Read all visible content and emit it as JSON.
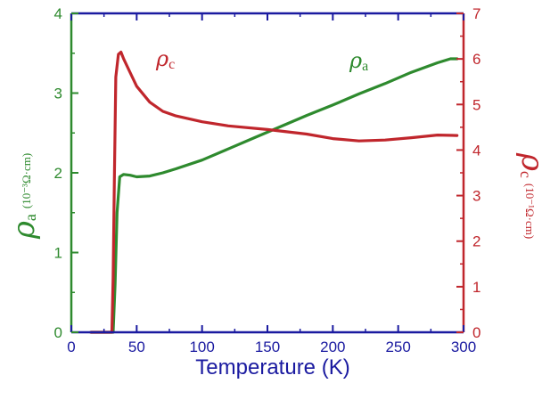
{
  "chart_data": {
    "type": "line",
    "xlabel": "Temperature (K)",
    "x_ticks": [
      "0",
      "50",
      "100",
      "150",
      "200",
      "250",
      "300"
    ],
    "xlim": [
      0,
      300
    ],
    "y_left": {
      "label_symbol": "ρ",
      "label_sub": "a",
      "label_unit": "(10⁻³Ω·cm)",
      "ticks": [
        "0",
        "1",
        "2",
        "3",
        "4"
      ],
      "ylim": [
        0,
        4
      ]
    },
    "y_right": {
      "label_symbol": "ρ",
      "label_sub": "c",
      "label_unit": "(10⁻¹Ω·cm)",
      "ticks": [
        "0",
        "1",
        "2",
        "3",
        "4",
        "5",
        "6",
        "7"
      ],
      "ylim": [
        0,
        7
      ]
    },
    "series": [
      {
        "name": "ρa",
        "axis": "left",
        "color": "#2e8a2e",
        "x": [
          15,
          32,
          33.5,
          35,
          37,
          40,
          45,
          50,
          60,
          70,
          80,
          100,
          120,
          140,
          160,
          180,
          200,
          220,
          240,
          260,
          280,
          290,
          295
        ],
        "y": [
          0,
          0,
          0.6,
          1.5,
          1.95,
          1.98,
          1.97,
          1.95,
          1.96,
          2.0,
          2.05,
          2.16,
          2.3,
          2.44,
          2.58,
          2.72,
          2.85,
          2.99,
          3.12,
          3.26,
          3.38,
          3.43,
          3.43
        ]
      },
      {
        "name": "ρc",
        "axis": "right",
        "color": "#c0262c",
        "x": [
          15,
          31,
          32,
          33,
          34,
          36,
          38,
          40,
          45,
          50,
          60,
          70,
          80,
          100,
          120,
          150,
          180,
          200,
          220,
          240,
          260,
          280,
          295
        ],
        "y": [
          0,
          0,
          1.2,
          3.5,
          5.6,
          6.1,
          6.15,
          6.0,
          5.7,
          5.4,
          5.05,
          4.85,
          4.75,
          4.62,
          4.53,
          4.45,
          4.35,
          4.25,
          4.2,
          4.22,
          4.27,
          4.33,
          4.32
        ]
      }
    ],
    "annotations": [
      {
        "symbol": "ρ",
        "sub": "c",
        "color": "#c0262c"
      },
      {
        "symbol": "ρ",
        "sub": "a",
        "color": "#2e8a2e"
      }
    ],
    "colors": {
      "axis_left": "#2e8a2e",
      "axis_right": "#c0262c",
      "frame": "#1a1aa0"
    }
  }
}
